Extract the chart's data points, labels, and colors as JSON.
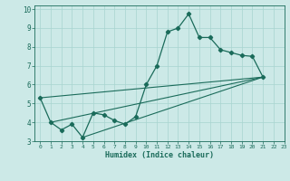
{
  "xlabel": "Humidex (Indice chaleur)",
  "bg_color": "#cce9e7",
  "grid_color": "#a8d4d0",
  "line_color": "#1a6b5a",
  "xlim": [
    -0.5,
    23
  ],
  "ylim": [
    3,
    10.2
  ],
  "xticks": [
    0,
    1,
    2,
    3,
    4,
    5,
    6,
    7,
    8,
    9,
    10,
    11,
    12,
    13,
    14,
    15,
    16,
    17,
    18,
    19,
    20,
    21,
    22,
    23
  ],
  "yticks": [
    3,
    4,
    5,
    6,
    7,
    8,
    9,
    10
  ],
  "data_x": [
    0,
    1,
    2,
    3,
    4,
    5,
    6,
    7,
    8,
    9,
    10,
    11,
    12,
    13,
    14,
    15,
    16,
    17,
    18,
    19,
    20,
    21
  ],
  "data_y": [
    5.3,
    4.0,
    3.6,
    3.9,
    3.2,
    4.5,
    4.4,
    4.1,
    3.9,
    4.3,
    6.0,
    7.0,
    8.8,
    9.0,
    9.75,
    8.5,
    8.5,
    7.85,
    7.7,
    7.55,
    7.5,
    6.4
  ],
  "line1_x": [
    0,
    21
  ],
  "line1_y": [
    5.3,
    6.4
  ],
  "line2_x": [
    1,
    21
  ],
  "line2_y": [
    4.0,
    6.4
  ],
  "line3_x": [
    4,
    21
  ],
  "line3_y": [
    3.2,
    6.4
  ],
  "xlabel_fontsize": 6.0
}
